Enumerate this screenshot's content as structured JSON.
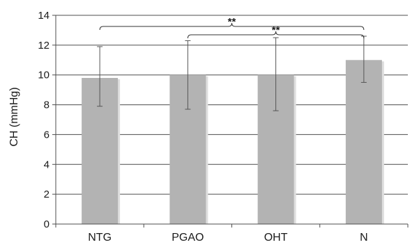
{
  "chart_data": {
    "type": "bar",
    "categories": [
      "NTG",
      "PGAO",
      "OHT",
      "N"
    ],
    "values": [
      9.8,
      10.0,
      10.0,
      11.0
    ],
    "error_low": [
      7.9,
      7.7,
      7.6,
      9.5
    ],
    "error_high": [
      11.9,
      12.3,
      12.5,
      12.6
    ],
    "ylabel": "CH (mmHg)",
    "xlabel": "",
    "title": "",
    "ylim": [
      0,
      14
    ],
    "yticks": [
      0,
      2,
      4,
      6,
      8,
      10,
      12,
      14
    ],
    "grid": true,
    "legend": "none",
    "bar_color": "#b3b3b3",
    "significance": [
      {
        "from": "NTG",
        "to": "N",
        "label": "**"
      },
      {
        "from": "PGAO",
        "to": "N",
        "label": "**"
      }
    ]
  }
}
